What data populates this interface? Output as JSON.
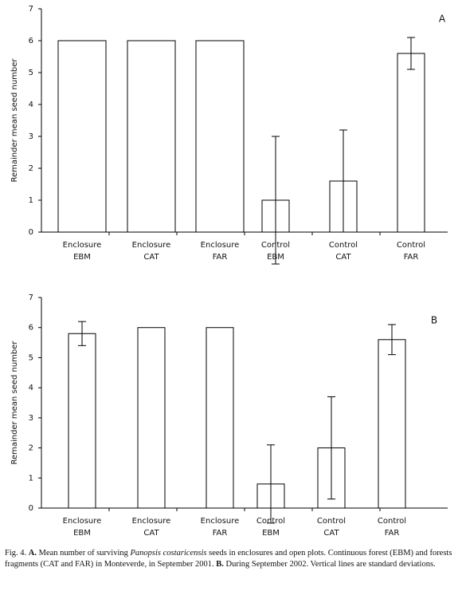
{
  "chart_data": [
    {
      "type": "bar",
      "panel_label": "A",
      "y_label": "Remainder mean seed number",
      "categories": [
        [
          "Enclosure",
          "EBM"
        ],
        [
          "Enclosure",
          "CAT"
        ],
        [
          "Enclosure",
          "FAR"
        ],
        [
          "Control",
          "EBM"
        ],
        [
          "Control",
          "CAT"
        ],
        [
          "Control",
          "FAR"
        ]
      ],
      "values": [
        6,
        6,
        6,
        1,
        1.6,
        5.6
      ],
      "errors": [
        null,
        null,
        null,
        2,
        1.6,
        0.5
      ],
      "color": "#ffffff",
      "ylim": [
        0,
        7
      ],
      "yticks": [
        0,
        1,
        2,
        3,
        4,
        5,
        6,
        7
      ]
    },
    {
      "type": "bar",
      "panel_label": "B",
      "y_label": "Remainder mean seed number",
      "categories": [
        [
          "Enclosure",
          "EBM"
        ],
        [
          "Enclosure",
          "CAT"
        ],
        [
          "Enclosure",
          "FAR"
        ],
        [
          "Control",
          "EBM"
        ],
        [
          "Control",
          "CAT"
        ],
        [
          "Control",
          "FAR"
        ]
      ],
      "values": [
        5.8,
        6,
        6,
        0.8,
        2,
        5.6
      ],
      "errors": [
        0.4,
        null,
        null,
        1.3,
        1.7,
        0.5
      ],
      "color": "#ffffff",
      "ylim": [
        0,
        7
      ],
      "yticks": [
        0,
        1,
        2,
        3,
        4,
        5,
        6,
        7
      ]
    }
  ],
  "caption": [
    "Fig. 4. ",
    "A.",
    " Mean number of surviving ",
    "Panopsis costaricensis",
    " seeds in enclosures and open plots. Continuous forest (EBM) and forests fragments (CAT and FAR) in Monteverde, in September 2001. ",
    "B.",
    " During September 2002. Vertical lines are standard deviations."
  ]
}
